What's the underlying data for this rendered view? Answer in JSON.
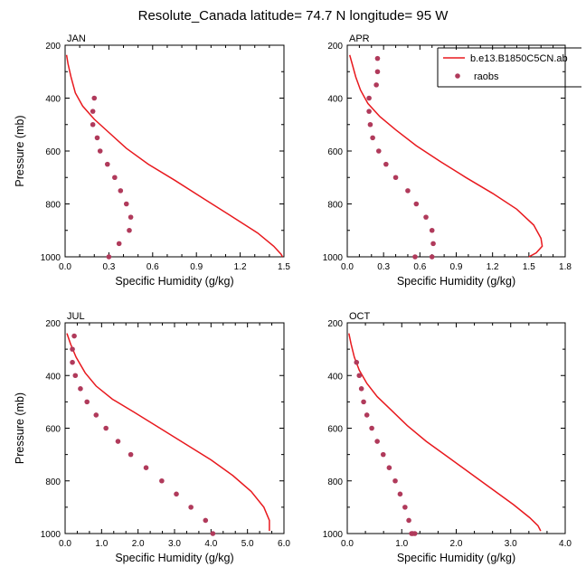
{
  "title": "Resolute_Canada  latitude= 74.7 N longitude= 95 W",
  "colors": {
    "model": "#e8191e",
    "obs": "#b03a5b"
  },
  "legend": {
    "model_label": "b.e13.B1850C5CN.ab",
    "obs_label": "raobs"
  },
  "chart_data": [
    {
      "type": "line",
      "panel": "JAN",
      "xlabel": "Specific Humidity (g/kg)",
      "ylabel": "Pressure (mb)",
      "xlim": [
        0,
        1.5
      ],
      "ylim": [
        1000,
        200
      ],
      "xticks": [
        0.0,
        0.3,
        0.6,
        0.9,
        1.2,
        1.5
      ],
      "xtick_labels": [
        "0.0",
        "0.3",
        "0.6",
        "0.9",
        "1.2",
        "1.5"
      ],
      "yticks": [
        200,
        400,
        600,
        800,
        1000
      ],
      "ytick_labels": [
        "200",
        "400",
        "600",
        "800",
        "1000"
      ],
      "series": [
        {
          "name": "b.e13.B1850C5CN.ab",
          "style": "line",
          "x": [
            0.01,
            0.02,
            0.04,
            0.07,
            0.12,
            0.2,
            0.3,
            0.42,
            0.57,
            0.75,
            0.95,
            1.15,
            1.32,
            1.43,
            1.48,
            1.49
          ],
          "y": [
            237,
            270,
            320,
            380,
            430,
            480,
            530,
            590,
            650,
            710,
            780,
            850,
            910,
            960,
            990,
            1000
          ]
        },
        {
          "name": "raobs",
          "style": "markers",
          "x": [
            0.2,
            0.19,
            0.19,
            0.22,
            0.24,
            0.29,
            0.34,
            0.38,
            0.42,
            0.45,
            0.44,
            0.37,
            0.3
          ],
          "y": [
            400,
            450,
            500,
            550,
            600,
            650,
            700,
            750,
            800,
            850,
            900,
            950,
            1000
          ]
        }
      ]
    },
    {
      "type": "line",
      "panel": "APR",
      "xlabel": "Specific Humidity (g/kg)",
      "ylabel": "",
      "xlim": [
        0,
        1.8
      ],
      "ylim": [
        1000,
        200
      ],
      "xticks": [
        0.0,
        0.3,
        0.6,
        0.9,
        1.2,
        1.5,
        1.8
      ],
      "xtick_labels": [
        "0.0",
        "0.3",
        "0.6",
        "0.9",
        "1.2",
        "1.5",
        "1.8"
      ],
      "yticks": [
        200,
        400,
        600,
        800,
        1000
      ],
      "ytick_labels": [
        "200",
        "400",
        "600",
        "800",
        "1000"
      ],
      "series": [
        {
          "name": "b.e13.B1850C5CN.ab",
          "style": "line",
          "x": [
            0.02,
            0.04,
            0.07,
            0.11,
            0.17,
            0.27,
            0.4,
            0.57,
            0.77,
            0.98,
            1.2,
            1.4,
            1.54,
            1.6,
            1.61,
            1.56,
            1.5
          ],
          "y": [
            237,
            270,
            320,
            370,
            420,
            470,
            520,
            580,
            640,
            700,
            760,
            820,
            880,
            930,
            960,
            985,
            1000
          ]
        },
        {
          "name": "raobs",
          "style": "markers",
          "x": [
            0.25,
            0.25,
            0.24,
            0.18,
            0.18,
            0.19,
            0.21,
            0.26,
            0.32,
            0.4,
            0.5,
            0.57,
            0.65,
            0.7,
            0.71,
            0.7,
            0.56
          ],
          "y": [
            250,
            300,
            350,
            400,
            450,
            500,
            550,
            600,
            650,
            700,
            750,
            800,
            850,
            900,
            950,
            1000,
            1000
          ]
        }
      ]
    },
    {
      "type": "line",
      "panel": "JUL",
      "xlabel": "Specific Humidity (g/kg)",
      "ylabel": "Pressure (mb)",
      "xlim": [
        0,
        6
      ],
      "ylim": [
        1000,
        200
      ],
      "xticks": [
        0,
        1,
        2,
        3,
        4,
        5,
        6
      ],
      "xtick_labels": [
        "0.0",
        "1.0",
        "2.0",
        "3.0",
        "4.0",
        "5.0",
        "6.0"
      ],
      "yticks": [
        200,
        400,
        600,
        800,
        1000
      ],
      "ytick_labels": [
        "200",
        "400",
        "600",
        "800",
        "1000"
      ],
      "series": [
        {
          "name": "b.e13.B1850C5CN.ab",
          "style": "line",
          "x": [
            0.05,
            0.15,
            0.3,
            0.55,
            0.85,
            1.3,
            1.9,
            2.6,
            3.3,
            4.0,
            4.6,
            5.1,
            5.45,
            5.6,
            5.6
          ],
          "y": [
            240,
            280,
            330,
            390,
            440,
            490,
            540,
            600,
            660,
            720,
            780,
            840,
            900,
            950,
            990
          ]
        },
        {
          "name": "raobs",
          "style": "markers",
          "x": [
            0.25,
            0.2,
            0.2,
            0.28,
            0.42,
            0.6,
            0.85,
            1.12,
            1.45,
            1.8,
            2.22,
            2.65,
            3.05,
            3.45,
            3.85,
            4.05
          ],
          "y": [
            250,
            300,
            350,
            400,
            450,
            500,
            550,
            600,
            650,
            700,
            750,
            800,
            850,
            900,
            950,
            1000
          ]
        }
      ]
    },
    {
      "type": "line",
      "panel": "OCT",
      "xlabel": "Specific Humidity (g/kg)",
      "ylabel": "",
      "xlim": [
        0,
        4
      ],
      "ylim": [
        1000,
        200
      ],
      "xticks": [
        0,
        1,
        2,
        3,
        4
      ],
      "xtick_labels": [
        "0.0",
        "1.0",
        "2.0",
        "3.0",
        "4.0"
      ],
      "yticks": [
        200,
        400,
        600,
        800,
        1000
      ],
      "ytick_labels": [
        "200",
        "400",
        "600",
        "800",
        "1000"
      ],
      "series": [
        {
          "name": "b.e13.B1850C5CN.ab",
          "style": "line",
          "x": [
            0.03,
            0.07,
            0.13,
            0.22,
            0.36,
            0.55,
            0.8,
            1.1,
            1.45,
            1.85,
            2.25,
            2.65,
            3.05,
            3.35,
            3.5,
            3.55
          ],
          "y": [
            240,
            280,
            330,
            380,
            430,
            480,
            530,
            590,
            650,
            710,
            770,
            830,
            890,
            940,
            970,
            990
          ]
        },
        {
          "name": "raobs",
          "style": "markers",
          "x": [
            0.17,
            0.22,
            0.26,
            0.3,
            0.36,
            0.45,
            0.55,
            0.66,
            0.77,
            0.88,
            0.97,
            1.06,
            1.13,
            1.2,
            1.24,
            1.18
          ],
          "y": [
            350,
            400,
            450,
            500,
            550,
            600,
            650,
            700,
            750,
            800,
            850,
            900,
            950,
            1000,
            1000,
            1000
          ]
        }
      ]
    }
  ]
}
